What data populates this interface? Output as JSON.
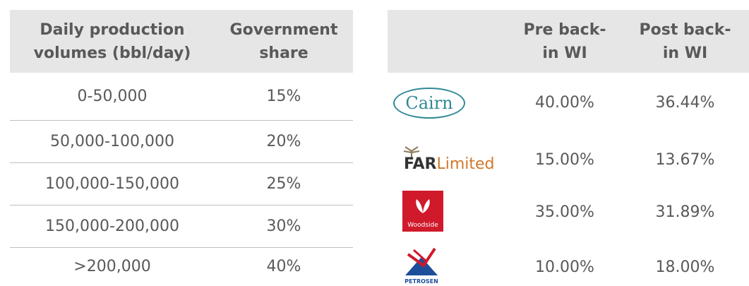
{
  "left_table": {
    "header": [
      "Daily production volumes (bbl/day)",
      "Government share"
    ],
    "rows": [
      [
        "0-50,000",
        "15%"
      ],
      [
        "50,000-100,000",
        "20%"
      ],
      [
        "100,000-150,000",
        "25%"
      ],
      [
        "150,000-200,000",
        "30%"
      ],
      [
        ">200,000",
        "40%"
      ]
    ]
  },
  "right_table": {
    "header": [
      "Pre back-in WI",
      "Post back-in WI"
    ],
    "rows": [
      {
        "logo": [
          "Cairn"
        ],
        "values": [
          "40.00%",
          "36.44%"
        ]
      },
      {
        "logo": [
          "FAR",
          "Limited"
        ],
        "values": [
          "15.00%",
          "13.67%"
        ]
      },
      {
        "logo": [
          "Woodside"
        ],
        "values": [
          "35.00%",
          "31.89%"
        ]
      },
      {
        "logo": [
          "PETROSEN"
        ],
        "values": [
          "10.00%",
          "18.00%"
        ]
      }
    ]
  }
}
